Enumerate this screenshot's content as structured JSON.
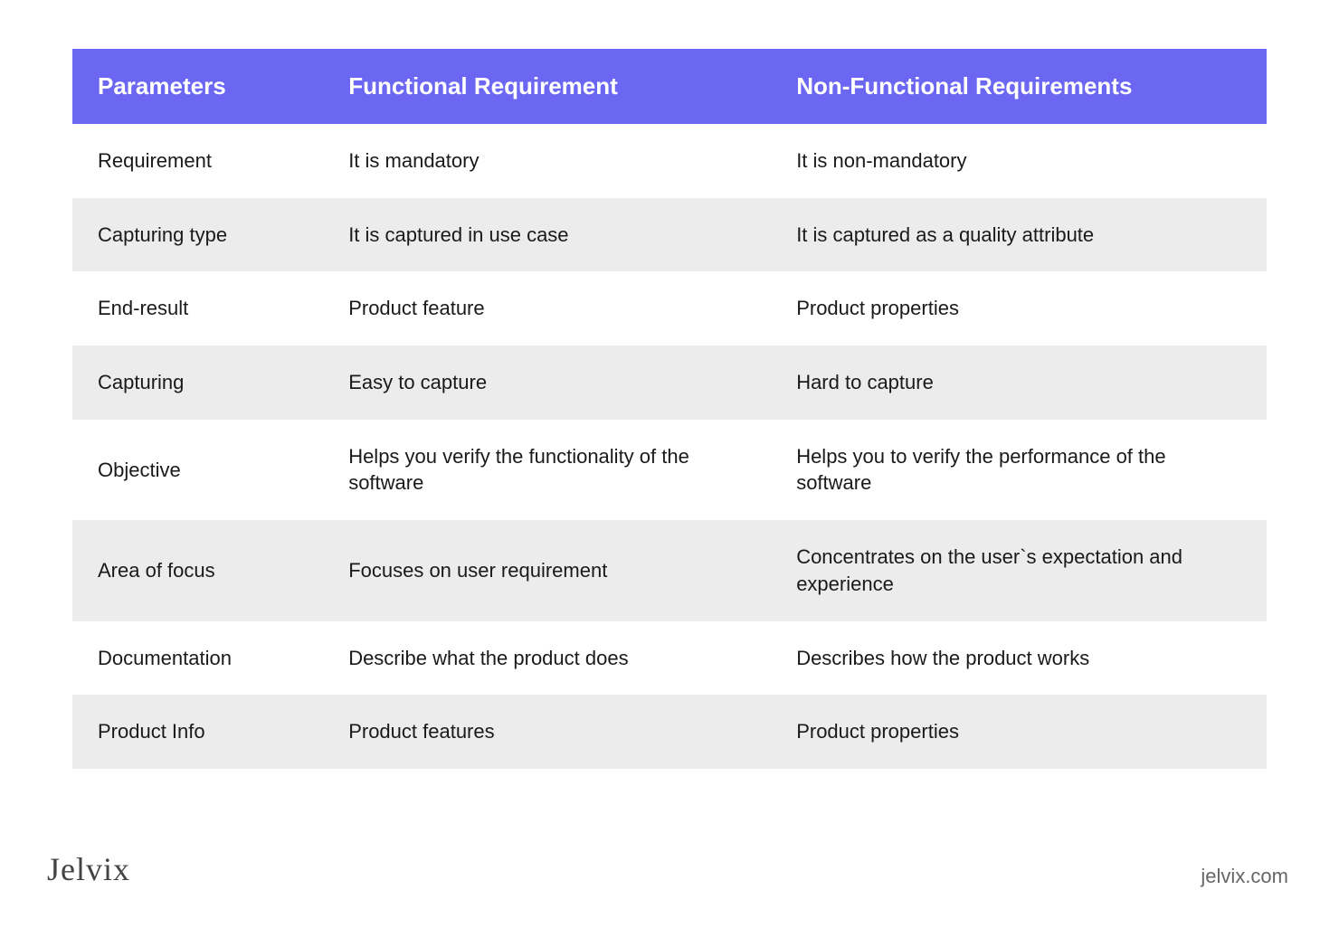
{
  "table": {
    "type": "table",
    "header_bg": "#6c67f2",
    "header_text_color": "#ffffff",
    "header_fontsize": 26,
    "header_fontweight": 700,
    "row_bg": "#ffffff",
    "row_alt_bg": "#ececec",
    "cell_text_color": "#1a1a1a",
    "cell_fontsize": 22,
    "columns": [
      {
        "label": "Parameters",
        "width_pct": 21
      },
      {
        "label": "Functional Requirement",
        "width_pct": 37.5
      },
      {
        "label": "Non-Functional Requirements",
        "width_pct": 41.5
      }
    ],
    "rows": [
      {
        "param": "Requirement",
        "functional": "It is mandatory",
        "nonfunctional": "It is non-mandatory"
      },
      {
        "param": "Capturing type",
        "functional": "It is captured in use case",
        "nonfunctional": "It is captured as a quality attribute"
      },
      {
        "param": "End-result",
        "functional": "Product feature",
        "nonfunctional": "Product properties"
      },
      {
        "param": "Capturing",
        "functional": "Easy to capture",
        "nonfunctional": "Hard to capture"
      },
      {
        "param": "Objective",
        "functional": "Helps you verify the functionality of the software",
        "nonfunctional": "Helps you to verify the performance of the software"
      },
      {
        "param": "Area of focus",
        "functional": "Focuses on user requirement",
        "nonfunctional": "Concentrates on the user`s expectation and experience"
      },
      {
        "param": "Documentation",
        "functional": "Describe what the product does",
        "nonfunctional": "Describes how the product works"
      },
      {
        "param": "Product Info",
        "functional": "Product features",
        "nonfunctional": "Product properties"
      }
    ]
  },
  "footer": {
    "brand": "Jelvix",
    "url": "jelvix.com",
    "brand_color": "#444444",
    "url_color": "#666666"
  },
  "background_color": "#ffffff"
}
